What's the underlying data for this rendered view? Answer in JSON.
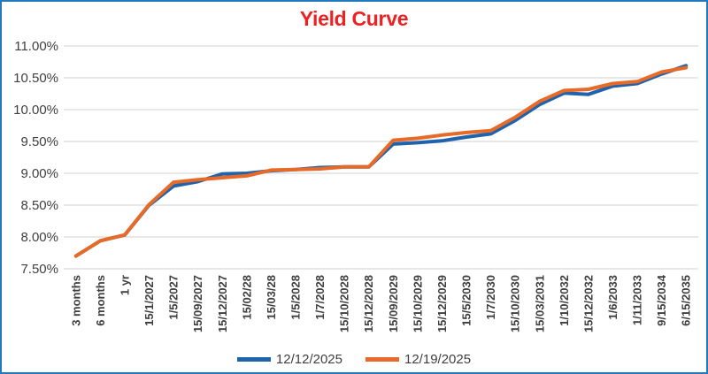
{
  "window": {
    "border_color": "#2279bd",
    "background": "#ffffff"
  },
  "chart_data": {
    "type": "line",
    "title": "Yield Curve",
    "title_color": "#ed2024",
    "categories": [
      "3 months",
      "6 months",
      "1 yr",
      "15/1/2027",
      "1/5/2027",
      "15/09/2027",
      "15/12/2027",
      "15/02/28",
      "15/03/28",
      "1/5/2028",
      "1/7/2028",
      "15/10/2028",
      "15/12/2028",
      "15/09/2029",
      "15/10/2029",
      "15/12/2029",
      "15/5/2030",
      "1/7/2030",
      "15/10/2030",
      "15/03/2031",
      "1/10/2032",
      "15/12/2032",
      "1/6/2033",
      "1/11/2033",
      "9/15/2034",
      "6/15/2035"
    ],
    "series": [
      {
        "name": "12/12/2025",
        "color": "#1f63ac",
        "values": [
          7.7,
          7.94,
          8.03,
          8.5,
          8.8,
          8.87,
          8.99,
          9.0,
          9.04,
          9.06,
          9.09,
          9.1,
          9.1,
          9.46,
          9.48,
          9.51,
          9.57,
          9.62,
          9.83,
          10.08,
          10.26,
          10.24,
          10.37,
          10.41,
          10.56,
          10.69
        ]
      },
      {
        "name": "12/19/2025",
        "color": "#e76a28",
        "values": [
          7.7,
          7.94,
          8.03,
          8.51,
          8.86,
          8.9,
          8.93,
          8.96,
          9.05,
          9.06,
          9.07,
          9.1,
          9.1,
          9.52,
          9.55,
          9.6,
          9.64,
          9.67,
          9.88,
          10.13,
          10.3,
          10.32,
          10.41,
          10.44,
          10.59,
          10.66
        ]
      }
    ],
    "ylim": [
      7.5,
      11.0
    ],
    "ytick_step": 0.5,
    "ytick_labels": [
      "11.00%",
      "10.50%",
      "10.00%",
      "9.50%",
      "9.00%",
      "8.50%",
      "8.00%",
      "7.50%"
    ],
    "grid": true,
    "gridline_color": "#d9d9d9",
    "axis_text_color": "#3f3f3f",
    "x_label_rotation": -90,
    "legend_position": "bottom-center"
  }
}
